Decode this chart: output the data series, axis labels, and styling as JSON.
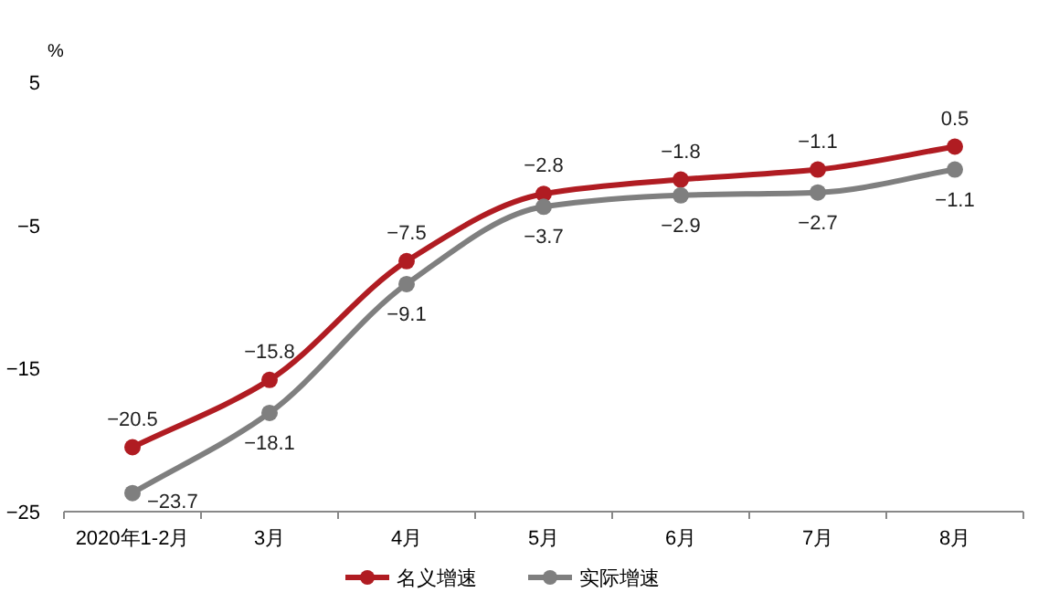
{
  "chart_data": {
    "type": "line",
    "ylabel": "%",
    "categories": [
      "2020年1-2月",
      "3月",
      "4月",
      "5月",
      "6月",
      "7月",
      "8月"
    ],
    "series": [
      {
        "name": "名义增速",
        "color": "#b01c22",
        "values": [
          -20.5,
          -15.8,
          -7.5,
          -2.8,
          -1.8,
          -1.1,
          0.5
        ]
      },
      {
        "name": "实际增速",
        "color": "#7f7f7f",
        "values": [
          -23.7,
          -18.1,
          -9.1,
          -3.7,
          -2.9,
          -2.7,
          -1.1
        ]
      }
    ],
    "ylim": [
      -25,
      5
    ],
    "yticks": [
      -25,
      -15,
      -5,
      5
    ],
    "data_labels": true,
    "legend": "bottom",
    "marker": "circle",
    "grid": false
  }
}
